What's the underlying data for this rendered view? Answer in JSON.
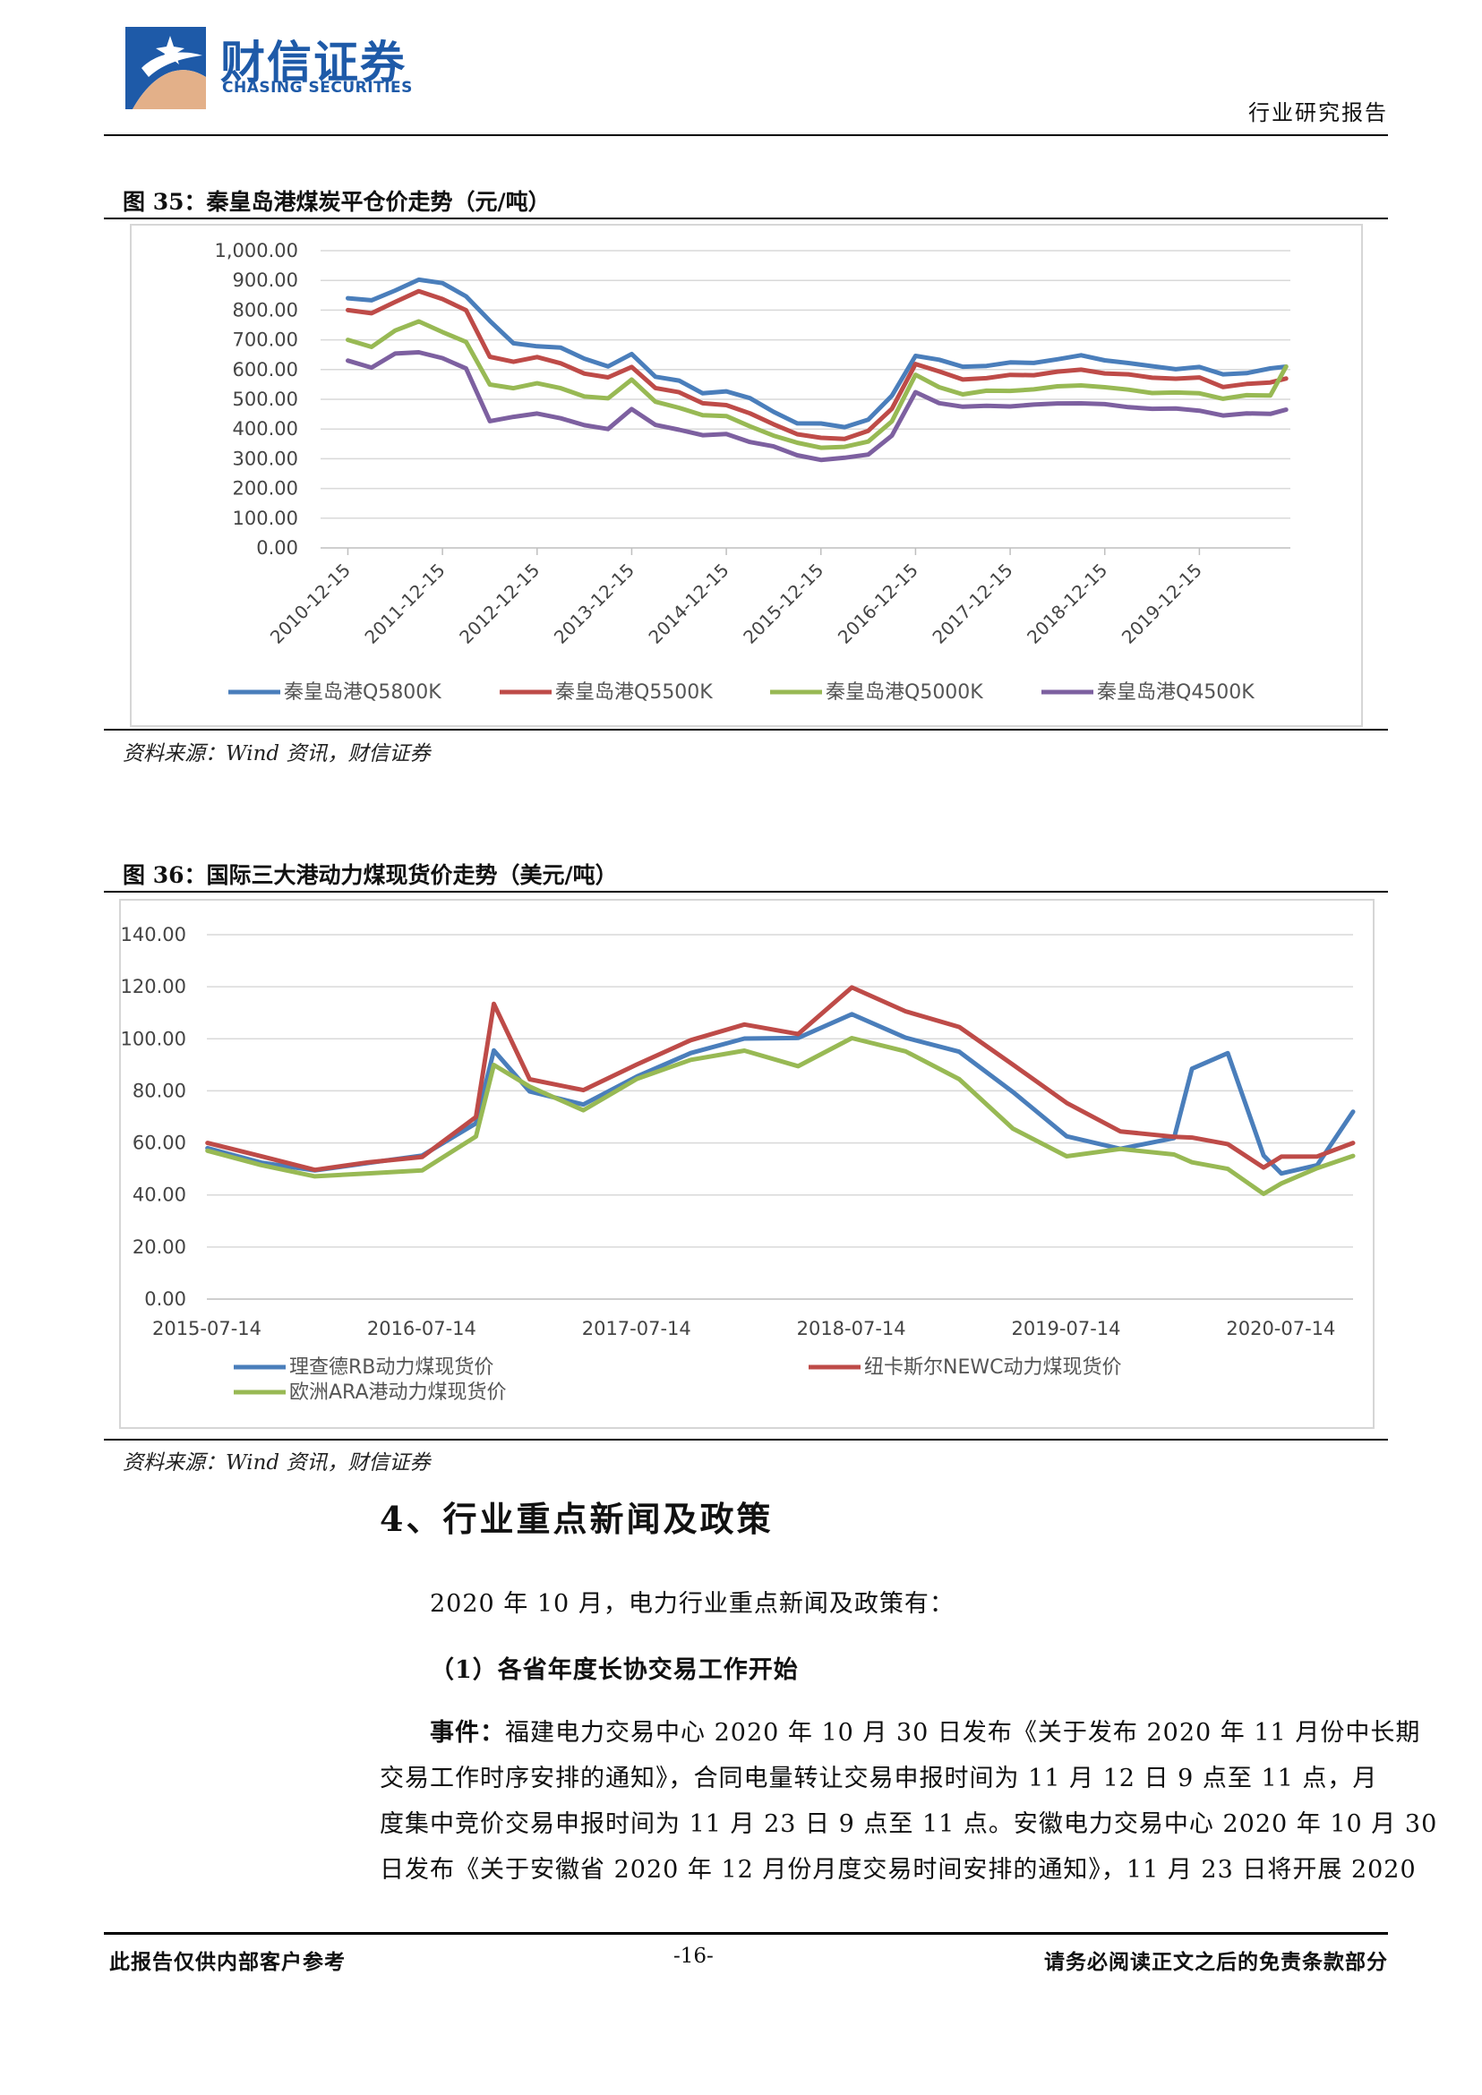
{
  "header": {
    "logo_cn": "财信证券",
    "logo_en": "CHASING SECURITIES",
    "report_type": "行业研究报告"
  },
  "figure35": {
    "title": "图 35：秦皇岛港煤炭平仓价走势（元/吨）",
    "source": "资料来源：Wind 资讯，财信证券",
    "chart_data": {
      "type": "line",
      "x": [
        "2010-12-15",
        "2011-03-15",
        "2011-06-15",
        "2011-09-15",
        "2011-12-15",
        "2012-03-15",
        "2012-06-15",
        "2012-09-15",
        "2012-12-15",
        "2013-03-15",
        "2013-06-15",
        "2013-09-15",
        "2013-12-15",
        "2014-03-15",
        "2014-06-15",
        "2014-09-15",
        "2014-12-15",
        "2015-03-15",
        "2015-06-15",
        "2015-09-15",
        "2015-12-15",
        "2016-03-15",
        "2016-06-15",
        "2016-09-15",
        "2016-12-15",
        "2017-03-15",
        "2017-06-15",
        "2017-09-15",
        "2017-12-15",
        "2018-03-15",
        "2018-06-15",
        "2018-09-15",
        "2018-12-15",
        "2019-03-15",
        "2019-06-15",
        "2019-09-15",
        "2019-12-15",
        "2020-03-15",
        "2020-06-15",
        "2020-09-15",
        "2020-11-15"
      ],
      "series": [
        {
          "name": "秦皇岛港Q5800K",
          "color": "#4a7ebb",
          "values": [
            840,
            830,
            870,
            900,
            890,
            850,
            760,
            690,
            680,
            670,
            640,
            610,
            650,
            580,
            560,
            520,
            530,
            500,
            460,
            420,
            415,
            410,
            430,
            510,
            650,
            630,
            610,
            615,
            620,
            625,
            635,
            645,
            635,
            620,
            610,
            605,
            605,
            585,
            590,
            600,
            610
          ]
        },
        {
          "name": "秦皇岛港Q5500K",
          "color": "#be4b48",
          "values": [
            800,
            790,
            830,
            860,
            840,
            800,
            640,
            630,
            640,
            620,
            590,
            570,
            610,
            540,
            520,
            490,
            480,
            450,
            420,
            380,
            370,
            370,
            390,
            470,
            620,
            590,
            570,
            570,
            580,
            585,
            590,
            600,
            590,
            580,
            575,
            570,
            570,
            545,
            550,
            555,
            570
          ]
        },
        {
          "name": "秦皇岛港Q5000K",
          "color": "#98b954",
          "values": [
            700,
            680,
            730,
            760,
            730,
            690,
            550,
            540,
            550,
            540,
            510,
            500,
            570,
            490,
            470,
            450,
            440,
            410,
            380,
            350,
            340,
            340,
            355,
            430,
            580,
            540,
            520,
            525,
            530,
            535,
            540,
            550,
            540,
            530,
            525,
            520,
            520,
            505,
            510,
            515,
            610
          ]
        },
        {
          "name": "秦皇岛港Q4500K",
          "color": "#7d60a0",
          "values": [
            630,
            610,
            650,
            660,
            640,
            600,
            430,
            440,
            450,
            440,
            410,
            400,
            470,
            410,
            400,
            380,
            380,
            360,
            340,
            310,
            300,
            300,
            315,
            380,
            520,
            490,
            475,
            475,
            480,
            480,
            485,
            490,
            480,
            475,
            470,
            465,
            465,
            445,
            450,
            455,
            465
          ]
        }
      ],
      "xlabel": "",
      "ylabel": "",
      "ylim": [
        0,
        1000
      ],
      "yticks": [
        "0.00",
        "100.00",
        "200.00",
        "300.00",
        "400.00",
        "500.00",
        "600.00",
        "700.00",
        "800.00",
        "900.00",
        "1,000.00"
      ],
      "xtick_labels": [
        "2010-12-15",
        "2011-12-15",
        "2012-12-15",
        "2013-12-15",
        "2014-12-15",
        "2015-12-15",
        "2016-12-15",
        "2017-12-15",
        "2018-12-15",
        "2019-12-15"
      ],
      "grid": true,
      "legend": "bottom"
    }
  },
  "figure36": {
    "title": "图 36：国际三大港动力煤现货价走势（美元/吨）",
    "source": "资料来源：Wind 资讯，财信证券",
    "chart_data": {
      "type": "line",
      "x": [
        "2015-07",
        "2015-10",
        "2016-01",
        "2016-04",
        "2016-07",
        "2016-10",
        "2016-11",
        "2017-01",
        "2017-04",
        "2017-07",
        "2017-10",
        "2018-01",
        "2018-04",
        "2018-07",
        "2018-10",
        "2019-01",
        "2019-04",
        "2019-07",
        "2019-10",
        "2020-01",
        "2020-02",
        "2020-04",
        "2020-06",
        "2020-07",
        "2020-09",
        "2020-11"
      ],
      "series": [
        {
          "name": "理查德RB动力煤现货价",
          "color": "#4a7ebb",
          "values": [
            58,
            52,
            50,
            52,
            55,
            68,
            95,
            80,
            75,
            85,
            95,
            100,
            100,
            110,
            100,
            95,
            80,
            62,
            58,
            62,
            88,
            95,
            55,
            48,
            52,
            72
          ]
        },
        {
          "name": "纽卡斯尔NEWC动力煤现货价",
          "color": "#be4b48",
          "values": [
            60,
            55,
            50,
            52,
            55,
            70,
            113,
            85,
            80,
            90,
            100,
            105,
            102,
            120,
            110,
            105,
            90,
            75,
            65,
            62,
            62,
            60,
            50,
            55,
            55,
            60
          ]
        },
        {
          "name": "欧洲ARA港动力煤现货价",
          "color": "#98b954",
          "values": [
            57,
            52,
            47,
            48,
            50,
            62,
            90,
            82,
            72,
            85,
            92,
            95,
            90,
            100,
            95,
            85,
            65,
            55,
            58,
            55,
            53,
            50,
            40,
            45,
            50,
            55
          ]
        }
      ],
      "xlabel": "",
      "ylabel": "",
      "ylim": [
        0,
        140
      ],
      "yticks": [
        "0.00",
        "20.00",
        "40.00",
        "60.00",
        "80.00",
        "100.00",
        "120.00",
        "140.00"
      ],
      "xtick_labels": [
        "2015-07-14",
        "2016-07-14",
        "2017-07-14",
        "2018-07-14",
        "2019-07-14",
        "2020-07-14"
      ],
      "grid": true,
      "legend": "bottom"
    }
  },
  "section": {
    "heading": "4、行业重点新闻及政策",
    "intro": "2020 年 10 月，电力行业重点新闻及政策有：",
    "sub_heading": "（1）各省年度长协交易工作开始",
    "event_label": "事件：",
    "event_lines": [
      "福建电力交易中心 2020 年 10 月 30 日发布《关于发布 2020 年 11 月份中长期",
      "交易工作时序安排的通知》，合同电量转让交易申报时间为 11 月 12 日 9 点至 11 点，月",
      "度集中竞价交易申报时间为 11 月 23 日 9 点至 11 点。安徽电力交易中心 2020 年 10 月 30",
      "日发布《关于安徽省 2020 年 12 月份月度交易时间安排的通知》，11 月 23 日将开展 2020"
    ]
  },
  "footer": {
    "left": "此报告仅供内部客户参考",
    "page": "-16-",
    "right": "请务必阅读正文之后的免责条款部分"
  }
}
